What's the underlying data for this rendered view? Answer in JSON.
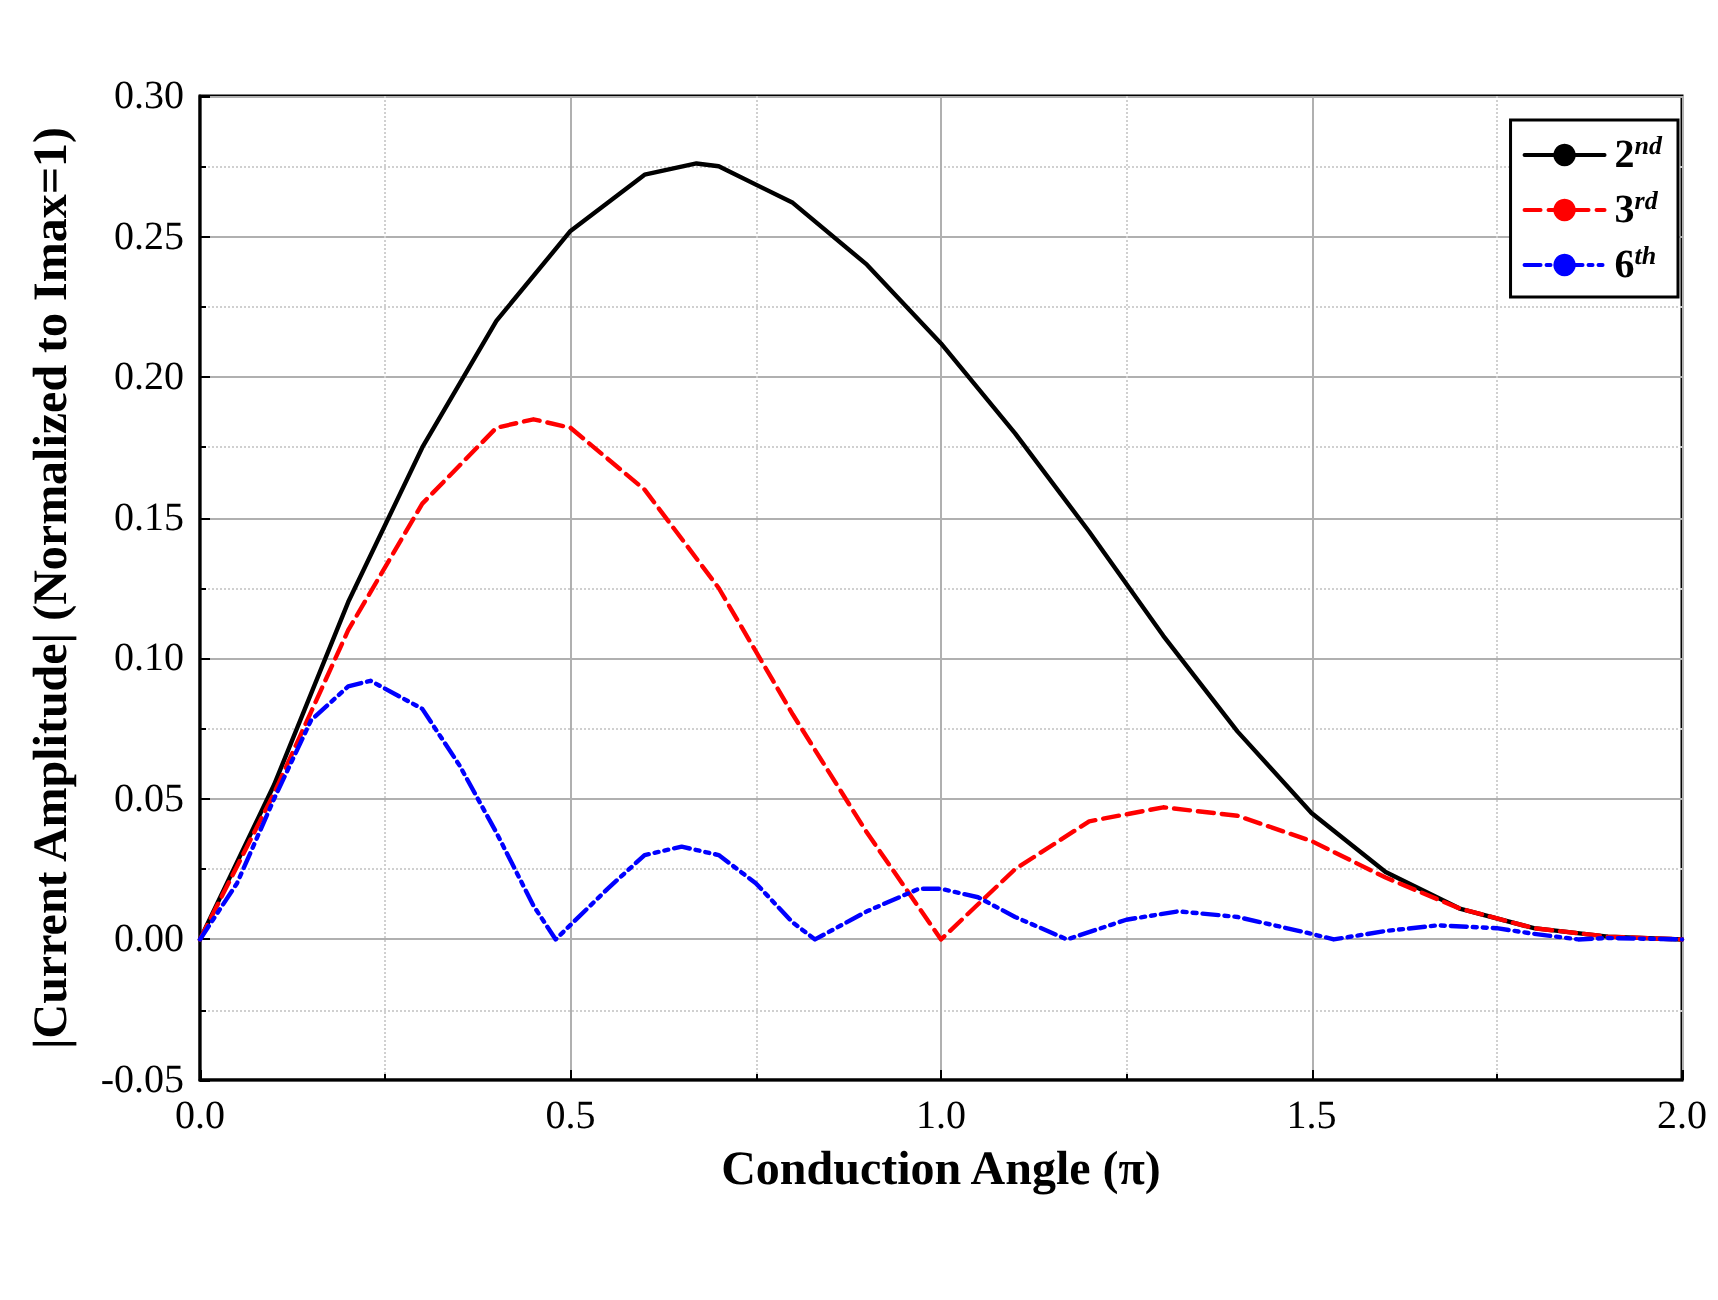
{
  "chart_data": {
    "type": "line",
    "xlabel": "Conduction Angle (π)",
    "ylabel": "|Current Amplitude| (Normalized to Imax=1)",
    "xlim": [
      0,
      2
    ],
    "ylim": [
      -0.05,
      0.3
    ],
    "xticks": [
      {
        "value": 0,
        "label": "0.0"
      },
      {
        "value": 0.5,
        "label": "0.5"
      },
      {
        "value": 1,
        "label": "1.0"
      },
      {
        "value": 1.5,
        "label": "1.5"
      },
      {
        "value": 2,
        "label": "2.0"
      }
    ],
    "yticks": [
      {
        "value": -0.05,
        "label": "-0.05"
      },
      {
        "value": 0,
        "label": "0.00"
      },
      {
        "value": 0.05,
        "label": "0.05"
      },
      {
        "value": 0.1,
        "label": "0.10"
      },
      {
        "value": 0.15,
        "label": "0.15"
      },
      {
        "value": 0.2,
        "label": "0.20"
      },
      {
        "value": 0.25,
        "label": "0.25"
      },
      {
        "value": 0.3,
        "label": "0.30"
      }
    ],
    "grid": true,
    "legend": "top right",
    "marker": "none",
    "series": [
      {
        "name": "2$^{nd}$",
        "color": "#000000",
        "line_style": "solid",
        "x": [
          0,
          0.1,
          0.2,
          0.3,
          0.4,
          0.5,
          0.6,
          0.67,
          0.7,
          0.8,
          0.9,
          1.0,
          1.1,
          1.2,
          1.3,
          1.4,
          1.5,
          1.6,
          1.7,
          1.8,
          1.9,
          2.0
        ],
        "values": [
          0,
          0.055,
          0.12,
          0.175,
          0.22,
          0.252,
          0.272,
          0.276,
          0.275,
          0.262,
          0.24,
          0.212,
          0.18,
          0.145,
          0.108,
          0.074,
          0.045,
          0.024,
          0.011,
          0.004,
          0.001,
          0
        ]
      },
      {
        "name": "3$^{rd}$",
        "color": "#ff0000",
        "line_style": "dashed",
        "x": [
          0,
          0.1,
          0.2,
          0.3,
          0.4,
          0.45,
          0.5,
          0.6,
          0.7,
          0.8,
          0.9,
          1.0,
          1.1,
          1.2,
          1.3,
          1.4,
          1.5,
          1.6,
          1.7,
          1.8,
          1.9,
          2.0
        ],
        "values": [
          0,
          0.052,
          0.11,
          0.155,
          0.182,
          0.185,
          0.182,
          0.16,
          0.125,
          0.08,
          0.038,
          0,
          0.025,
          0.042,
          0.047,
          0.044,
          0.035,
          0.022,
          0.011,
          0.004,
          0.001,
          0
        ]
      },
      {
        "name": "6$^{th}$",
        "color": "#0000ff",
        "line_style": "dotted",
        "x": [
          0,
          0.05,
          0.1,
          0.15,
          0.2,
          0.23,
          0.3,
          0.35,
          0.4,
          0.45,
          0.48,
          0.55,
          0.6,
          0.65,
          0.7,
          0.75,
          0.8,
          0.83,
          0.9,
          0.97,
          1.0,
          1.05,
          1.1,
          1.17,
          1.25,
          1.32,
          1.4,
          1.5,
          1.53,
          1.6,
          1.67,
          1.75,
          1.8,
          1.86,
          1.9,
          2.0
        ],
        "values": [
          0,
          0.02,
          0.05,
          0.078,
          0.09,
          0.092,
          0.082,
          0.062,
          0.038,
          0.012,
          0,
          0.018,
          0.03,
          0.033,
          0.03,
          0.02,
          0.006,
          0,
          0.01,
          0.018,
          0.018,
          0.015,
          0.008,
          0,
          0.007,
          0.01,
          0.008,
          0.002,
          0,
          0.003,
          0.005,
          0.004,
          0.002,
          0,
          0.0005,
          0
        ]
      }
    ]
  }
}
